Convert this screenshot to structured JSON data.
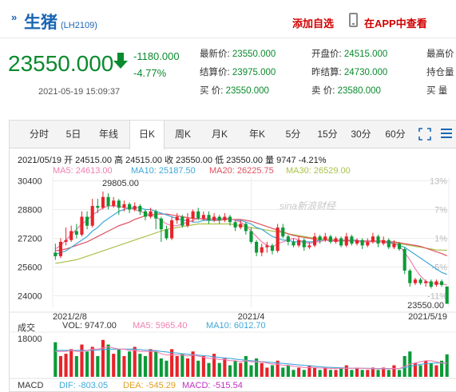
{
  "header": {
    "title": "生猪",
    "code": "(LH2109)",
    "add_fav": "添加自选",
    "app_link": "在APP中查看"
  },
  "quote": {
    "price": "23550.000",
    "change": "-1180.000",
    "change_pct": "-4.77%",
    "timestamp": "2021-05-19 15:09:37",
    "fields": [
      {
        "label": "最新价:",
        "value": "23550.000"
      },
      {
        "label": "结算价:",
        "value": "23975.000"
      },
      {
        "label": "买  价:",
        "value": "23550.000"
      },
      {
        "label": "开盘价:",
        "value": "24515.000"
      },
      {
        "label": "昨结算:",
        "value": "24730.000"
      },
      {
        "label": "卖  价:",
        "value": "23580.000"
      },
      {
        "label": "最高价",
        "value": ""
      },
      {
        "label": "持仓量",
        "value": ""
      },
      {
        "label": "买  量",
        "value": ""
      }
    ]
  },
  "tabs": [
    "分时",
    "5日",
    "年线",
    "日K",
    "周K",
    "月K",
    "年K",
    "5分",
    "15分",
    "30分",
    "60分"
  ],
  "active_tab": "日K",
  "info": {
    "line": "2021/05/19 开 24515.00 高 24515.00 收 23550.00 低 23550.00 量 9747 -4.21%",
    "ma5": "MA5: 24613.00",
    "ma10": "MA10: 25187.50",
    "ma20": "MA20: 26225.75",
    "ma30": "MA30: 26529.00"
  },
  "watermark": "sina新浪财经",
  "volume_info": {
    "label": "成交",
    "vol": "VOL: 9747.00",
    "ma5": "MA5: 5965.40",
    "ma10": "MA10: 6012.70",
    "ymax": "18000"
  },
  "macd_info": {
    "label": "MACD",
    "dif": "DIF: -803.05",
    "dea": "DEA: -545.29",
    "macd": "MACD: -515.54"
  },
  "colors": {
    "up": "#e8232a",
    "down": "#0b9a38",
    "ma5": "#f07fb0",
    "ma10": "#3fa8d8",
    "ma20": "#e0505f",
    "ma30": "#a9c24a",
    "accent": "#1a66b3"
  },
  "chart_data": {
    "type": "candlestick",
    "y_ticks": [
      "30400",
      "28800",
      "27200",
      "25600",
      "24000"
    ],
    "y_ticks_right": [
      "13%",
      "7%",
      "1%",
      "-5%",
      "-11%"
    ],
    "x_ticks": [
      "2021/2/8",
      "2021/4",
      "2021/5/19"
    ],
    "annotations": {
      "high": "29805.00",
      "last": "23550.00"
    },
    "ylim": [
      23350,
      30600
    ],
    "candles": [
      [
        26400,
        26200,
        26900,
        26000
      ],
      [
        26200,
        27000,
        27200,
        26100
      ],
      [
        27000,
        27100,
        27800,
        26800
      ],
      [
        27100,
        27600,
        27900,
        27000
      ],
      [
        27600,
        27400,
        28000,
        27200
      ],
      [
        27400,
        28400,
        28700,
        27300
      ],
      [
        28400,
        27900,
        28700,
        27700
      ],
      [
        27900,
        29000,
        29400,
        27800
      ],
      [
        29000,
        28900,
        29400,
        28600
      ],
      [
        28900,
        29500,
        29805,
        28800
      ],
      [
        29500,
        29000,
        29700,
        28800
      ],
      [
        29000,
        29300,
        29500,
        28900
      ],
      [
        29300,
        28900,
        29400,
        28500
      ],
      [
        28900,
        29100,
        29300,
        28700
      ],
      [
        29100,
        28800,
        29200,
        28600
      ],
      [
        28800,
        29000,
        29200,
        28700
      ],
      [
        29000,
        28700,
        29100,
        28500
      ],
      [
        28700,
        28400,
        28800,
        28200
      ],
      [
        28400,
        28700,
        28900,
        28300
      ],
      [
        28700,
        28300,
        28800,
        27700
      ],
      [
        28300,
        27700,
        28400,
        27000
      ],
      [
        27700,
        27200,
        27900,
        27100
      ],
      [
        27200,
        28200,
        28400,
        27100
      ],
      [
        28200,
        28400,
        28600,
        28000
      ],
      [
        28400,
        27900,
        28500,
        27800
      ],
      [
        27900,
        28300,
        28600,
        27800
      ],
      [
        28300,
        28700,
        28800,
        28100
      ],
      [
        28700,
        28300,
        28900,
        28200
      ],
      [
        28300,
        28500,
        28700,
        28200
      ],
      [
        28500,
        28200,
        28700,
        28000
      ],
      [
        28200,
        28400,
        28600,
        28100
      ],
      [
        28400,
        28200,
        28500,
        28000
      ],
      [
        28200,
        28400,
        28600,
        28100
      ],
      [
        28400,
        28100,
        28500,
        27900
      ],
      [
        28100,
        27800,
        28200,
        27600
      ],
      [
        27800,
        28000,
        28200,
        27700
      ],
      [
        28000,
        27600,
        28100,
        27400
      ],
      [
        27600,
        27000,
        27800,
        26900
      ],
      [
        27000,
        26400,
        27100,
        26200
      ],
      [
        26400,
        26700,
        26900,
        26200
      ],
      [
        26700,
        26800,
        27000,
        26400
      ],
      [
        26800,
        26500,
        26900,
        26300
      ],
      [
        26500,
        27800,
        28000,
        26400
      ],
      [
        27800,
        27300,
        28000,
        27200
      ],
      [
        27300,
        27000,
        27400,
        26800
      ],
      [
        27000,
        26800,
        27200,
        26700
      ],
      [
        26800,
        27100,
        27300,
        26700
      ],
      [
        27100,
        26700,
        27200,
        26500
      ],
      [
        26700,
        26800,
        27000,
        26600
      ],
      [
        26800,
        27300,
        27500,
        26700
      ],
      [
        27300,
        27100,
        27400,
        26900
      ],
      [
        27100,
        27300,
        27500,
        27000
      ],
      [
        27300,
        27000,
        27400,
        26900
      ],
      [
        27000,
        27200,
        27300,
        26900
      ],
      [
        27200,
        26800,
        27300,
        26700
      ],
      [
        26800,
        27300,
        27500,
        26700
      ],
      [
        27300,
        26900,
        27400,
        26800
      ],
      [
        26900,
        27100,
        27200,
        26800
      ],
      [
        27100,
        26800,
        27200,
        26600
      ],
      [
        26800,
        27000,
        27200,
        26700
      ],
      [
        27000,
        27300,
        27500,
        26900
      ],
      [
        27300,
        26900,
        27400,
        26700
      ],
      [
        26900,
        27100,
        27300,
        26800
      ],
      [
        27100,
        26700,
        27200,
        26600
      ],
      [
        26700,
        26900,
        27100,
        26600
      ],
      [
        26900,
        26600,
        27000,
        26500
      ],
      [
        26600,
        25400,
        26700,
        25200
      ],
      [
        25400,
        24700,
        25500,
        24500
      ],
      [
        24700,
        24900,
        25000,
        24600
      ],
      [
        24900,
        24700,
        25000,
        24600
      ],
      [
        24700,
        24800,
        24900,
        24500
      ],
      [
        24800,
        24500,
        24900,
        24400
      ],
      [
        24600,
        24800,
        24900,
        24500
      ],
      [
        24800,
        24600,
        24900,
        24500
      ],
      [
        24515,
        23550,
        24515,
        23550
      ]
    ],
    "ma5": [
      26600,
      26800,
      27100,
      27400,
      27700,
      28000,
      28200,
      28500,
      28700,
      28900,
      29000,
      29000,
      29000,
      28900,
      28900,
      28800,
      28700,
      28600,
      28500,
      28400,
      28200,
      28000,
      27900,
      27900,
      28000,
      28100,
      28200,
      28300,
      28300,
      28300,
      28300,
      28300,
      28300,
      28300,
      28200,
      28100,
      27900,
      27600,
      27300,
      27000,
      26800,
      26700,
      26900,
      27000,
      27100,
      27200,
      27100,
      27000,
      26900,
      27000,
      27000,
      27100,
      27100,
      27100,
      27100,
      27100,
      27100,
      27000,
      27000,
      27000,
      27000,
      27000,
      27000,
      26900,
      26900,
      26800,
      26400,
      26000,
      25500,
      25100,
      24800,
      24700,
      24700,
      24650,
      24613
    ],
    "ma10": [
      26300,
      26400,
      26500,
      26700,
      26900,
      27100,
      27300,
      27600,
      27800,
      28100,
      28300,
      28500,
      28700,
      28800,
      28900,
      28900,
      28900,
      28800,
      28800,
      28700,
      28600,
      28500,
      28400,
      28300,
      28200,
      28200,
      28100,
      28100,
      28200,
      28200,
      28200,
      28300,
      28300,
      28300,
      28200,
      28200,
      28100,
      28000,
      27800,
      27700,
      27500,
      27300,
      27200,
      27100,
      27100,
      27000,
      27000,
      27000,
      27000,
      27000,
      27100,
      27100,
      27100,
      27100,
      27100,
      27100,
      27100,
      27100,
      27000,
      27000,
      27000,
      27000,
      27000,
      27000,
      26900,
      26800,
      26700,
      26500,
      26300,
      26100,
      25900,
      25700,
      25500,
      25300,
      25187
    ],
    "ma20": [
      26500,
      26550,
      26600,
      26700,
      26800,
      26900,
      27000,
      27150,
      27300,
      27450,
      27600,
      27750,
      27900,
      28000,
      28100,
      28250,
      28350,
      28450,
      28500,
      28550,
      28550,
      28550,
      28500,
      28450,
      28400,
      28350,
      28300,
      28300,
      28250,
      28250,
      28200,
      28200,
      28250,
      28250,
      28250,
      28250,
      28200,
      28150,
      28050,
      27950,
      27850,
      27750,
      27650,
      27550,
      27450,
      27350,
      27300,
      27250,
      27200,
      27150,
      27100,
      27100,
      27050,
      27050,
      27050,
      27050,
      27050,
      27050,
      27050,
      27050,
      27050,
      27050,
      27050,
      27000,
      27000,
      26950,
      26900,
      26850,
      26800,
      26750,
      26650,
      26550,
      26450,
      26350,
      26225
    ],
    "ma30": [
      25800,
      25850,
      25900,
      25950,
      26000,
      26100,
      26200,
      26300,
      26400,
      26500,
      26600,
      26700,
      26800,
      26900,
      27000,
      27100,
      27200,
      27300,
      27400,
      27500,
      27600,
      27700,
      27750,
      27800,
      27850,
      27900,
      27950,
      28000,
      28000,
      28000,
      28000,
      28000,
      28000,
      28000,
      27950,
      27900,
      27850,
      27800,
      27750,
      27700,
      27650,
      27600,
      27550,
      27500,
      27450,
      27400,
      27350,
      27300,
      27250,
      27200,
      27200,
      27150,
      27150,
      27100,
      27100,
      27100,
      27050,
      27050,
      27050,
      27000,
      27000,
      27000,
      27000,
      26950,
      26950,
      26900,
      26850,
      26800,
      26750,
      26700,
      26650,
      26600,
      26550,
      26540,
      26529
    ],
    "volume": [
      15000,
      9000,
      10000,
      12000,
      9000,
      14000,
      11000,
      13000,
      9000,
      16000,
      14000,
      10000,
      12000,
      9000,
      11000,
      13000,
      10000,
      9000,
      12000,
      11000,
      8000,
      7000,
      12000,
      9000,
      10000,
      8000,
      11000,
      7000,
      9000,
      6000,
      10000,
      6000,
      8000,
      5000,
      7000,
      6000,
      9000,
      5000,
      8000,
      6000,
      4000,
      5000,
      7000,
      4000,
      5000,
      3000,
      4000,
      3000,
      5000,
      4000,
      3000,
      4000,
      3000,
      3000,
      4000,
      5000,
      3000,
      4000,
      3000,
      3000,
      4000,
      3000,
      4000,
      3000,
      5000,
      3000,
      9000,
      11000,
      6000,
      5000,
      7000,
      6000,
      5000,
      7000,
      9747
    ],
    "vol_ma5": [
      11000,
      11000,
      11000,
      11500,
      11000,
      11000,
      11500,
      12000,
      12000,
      12500,
      13000,
      12500,
      12000,
      12000,
      11500,
      11500,
      11000,
      11000,
      11000,
      11000,
      10000,
      9500,
      9500,
      9500,
      9500,
      9000,
      9500,
      9000,
      8500,
      8000,
      8000,
      7500,
      7500,
      7000,
      7000,
      6500,
      7000,
      6500,
      6500,
      6500,
      6000,
      5500,
      5500,
      5000,
      5000,
      4500,
      4500,
      4000,
      4000,
      4000,
      3800,
      3800,
      3600,
      3600,
      3700,
      3700,
      3700,
      3800,
      3700,
      3600,
      3500,
      3500,
      3500,
      3500,
      3600,
      3600,
      4500,
      5500,
      6000,
      6500,
      7000,
      7000,
      6500,
      6000,
      5965
    ],
    "vol_ma10": [
      11500,
      11500,
      11500,
      11500,
      11500,
      11500,
      11500,
      11500,
      11600,
      11800,
      12000,
      12000,
      12000,
      12000,
      12000,
      12000,
      11800,
      11600,
      11500,
      11400,
      11000,
      10800,
      10500,
      10300,
      10000,
      9800,
      9600,
      9400,
      9200,
      9000,
      8700,
      8400,
      8200,
      8000,
      7700,
      7400,
      7200,
      7000,
      6800,
      6600,
      6400,
      6200,
      6000,
      5800,
      5600,
      5400,
      5200,
      5000,
      4800,
      4600,
      4400,
      4200,
      4100,
      4000,
      3900,
      3800,
      3700,
      3700,
      3700,
      3700,
      3600,
      3600,
      3600,
      3600,
      3600,
      3600,
      4000,
      4500,
      5000,
      5400,
      5700,
      5900,
      6000,
      6010,
      6012
    ]
  }
}
